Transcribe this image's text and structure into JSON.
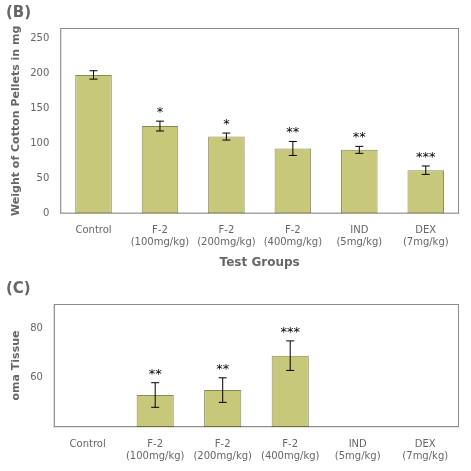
{
  "chart_data": [
    {
      "type": "bar",
      "title": "(B)",
      "categories": [
        "Control",
        "F-2\n(100mg/kg)",
        "F-2\n(200mg/kg)",
        "F-2\n(400mg/kg)",
        "IND\n(5mg/kg)",
        "DEX\n(7mg/kg)"
      ],
      "values": [
        198,
        125,
        110,
        93,
        91,
        62
      ],
      "errors": [
        6,
        7,
        5,
        10,
        5,
        6
      ],
      "annotations": [
        null,
        "*",
        "*",
        "**",
        "**",
        "***"
      ],
      "x_label": "Test Groups",
      "y_label": "Weight of Cotton Pellets in mg",
      "color": "#c8c87a",
      "ylim": [
        0,
        265
      ],
      "yticks": [
        0,
        50,
        100,
        150,
        200,
        250
      ],
      "grid": false
    },
    {
      "type": "bar",
      "title": "(C)",
      "categories": [
        "Control",
        "F-2\n(100mg/kg)",
        "F-2\n(200mg/kg)",
        "F-2\n(400mg/kg)",
        "IND\n(5mg/kg)",
        "DEX\n(7mg/kg)"
      ],
      "values": [
        null,
        53,
        55,
        69,
        null,
        null
      ],
      "errors": [
        null,
        5,
        5,
        6,
        null,
        null
      ],
      "annotations": [
        null,
        "**",
        "**",
        "***",
        null,
        null
      ],
      "y_label": "oma Tissue",
      "color": "#c8c87a",
      "ylim": [
        40,
        90
      ],
      "yticks": [
        60,
        80
      ],
      "grid": false
    }
  ]
}
